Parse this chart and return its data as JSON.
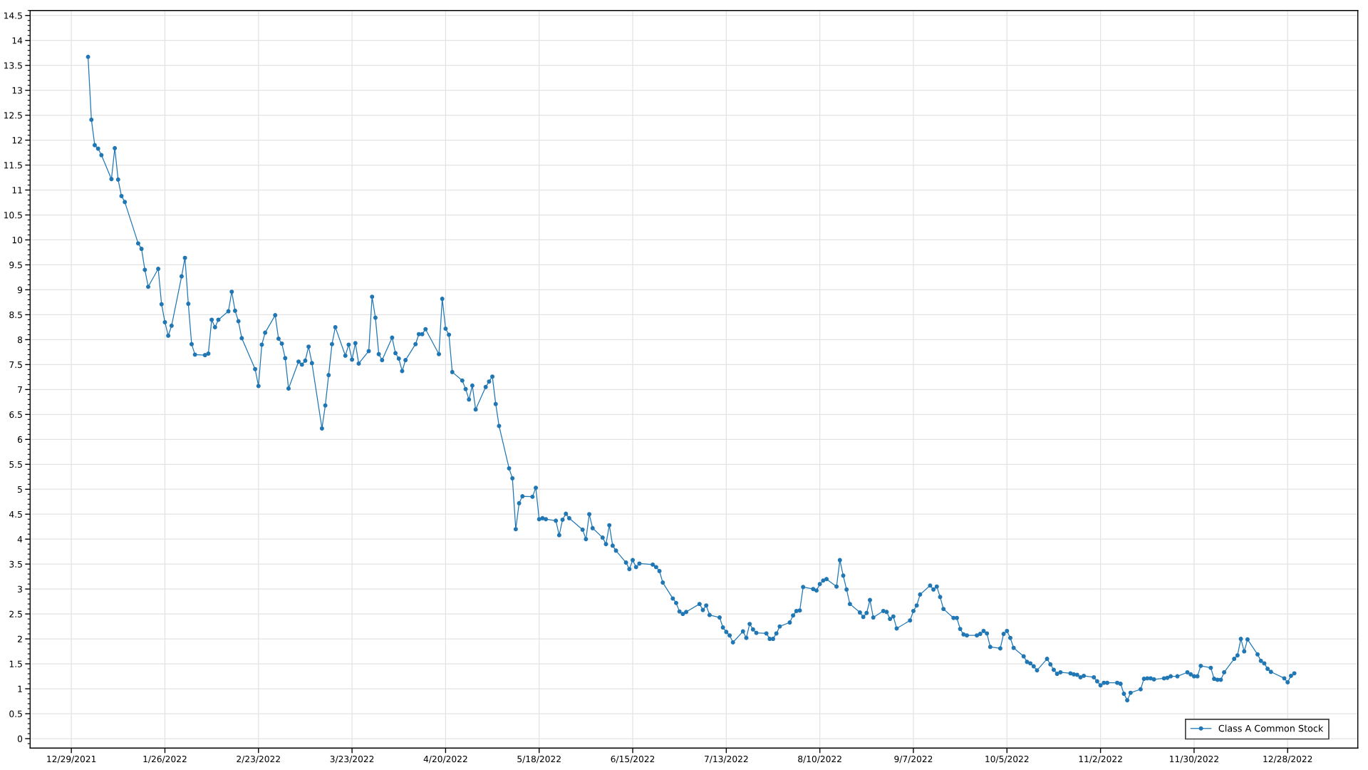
{
  "chart_data": {
    "type": "line",
    "xlim": [
      "2021-12-16T16:00",
      "2023-01-18"
    ],
    "xticks": [
      {
        "value": "2021-12-29",
        "label": "12/29/2021"
      },
      {
        "value": "2022-01-26",
        "label": "1/26/2022"
      },
      {
        "value": "2022-02-23",
        "label": "2/23/2022"
      },
      {
        "value": "2022-03-23",
        "label": "3/23/2022"
      },
      {
        "value": "2022-04-20",
        "label": "4/20/2022"
      },
      {
        "value": "2022-05-18",
        "label": "5/18/2022"
      },
      {
        "value": "2022-06-15",
        "label": "6/15/2022"
      },
      {
        "value": "2022-07-13",
        "label": "7/13/2022"
      },
      {
        "value": "2022-08-10",
        "label": "8/10/2022"
      },
      {
        "value": "2022-09-07",
        "label": "9/7/2022"
      },
      {
        "value": "2022-10-05",
        "label": "10/5/2022"
      },
      {
        "value": "2022-11-02",
        "label": "11/2/2022"
      },
      {
        "value": "2022-11-30",
        "label": "11/30/2022"
      },
      {
        "value": "2022-12-28",
        "label": "12/28/2022"
      }
    ],
    "ylim": [
      -0.19,
      14.6
    ],
    "yticks": [
      0,
      0.5,
      1,
      1.5,
      2,
      2.5,
      3,
      3.5,
      4,
      4.5,
      5,
      5.5,
      6,
      6.5,
      7,
      7.5,
      8,
      8.5,
      9,
      9.5,
      10,
      10.5,
      11,
      11.5,
      12,
      12.5,
      13,
      13.5,
      14,
      14.5
    ],
    "grid": true,
    "legend": "bottom right",
    "marker": "circle",
    "line_style": "solid",
    "series": [
      {
        "name": "Class A Common Stock",
        "color": "#2077b4",
        "x": [
          "2022-01-03",
          "2022-01-04",
          "2022-01-05",
          "2022-01-06",
          "2022-01-07",
          "2022-01-10",
          "2022-01-11",
          "2022-01-12",
          "2022-01-13",
          "2022-01-14",
          "2022-01-18",
          "2022-01-19",
          "2022-01-20",
          "2022-01-21",
          "2022-01-24",
          "2022-01-25",
          "2022-01-26",
          "2022-01-27",
          "2022-01-28",
          "2022-01-31",
          "2022-02-01",
          "2022-02-02",
          "2022-02-03",
          "2022-02-04",
          "2022-02-07",
          "2022-02-08",
          "2022-02-09",
          "2022-02-10",
          "2022-02-11",
          "2022-02-14",
          "2022-02-15",
          "2022-02-16",
          "2022-02-17",
          "2022-02-18",
          "2022-02-22",
          "2022-02-23",
          "2022-02-24",
          "2022-02-25",
          "2022-02-28",
          "2022-03-01",
          "2022-03-02",
          "2022-03-03",
          "2022-03-04",
          "2022-03-07",
          "2022-03-08",
          "2022-03-09",
          "2022-03-10",
          "2022-03-11",
          "2022-03-14",
          "2022-03-15",
          "2022-03-16",
          "2022-03-17",
          "2022-03-18",
          "2022-03-21",
          "2022-03-22",
          "2022-03-23",
          "2022-03-24",
          "2022-03-25",
          "2022-03-28",
          "2022-03-29",
          "2022-03-30",
          "2022-03-31",
          "2022-04-01",
          "2022-04-04",
          "2022-04-05",
          "2022-04-06",
          "2022-04-07",
          "2022-04-08",
          "2022-04-11",
          "2022-04-12",
          "2022-04-13",
          "2022-04-14",
          "2022-04-18",
          "2022-04-19",
          "2022-04-20",
          "2022-04-21",
          "2022-04-22",
          "2022-04-25",
          "2022-04-26",
          "2022-04-27",
          "2022-04-28",
          "2022-04-29",
          "2022-05-02",
          "2022-05-03",
          "2022-05-04",
          "2022-05-05",
          "2022-05-06",
          "2022-05-09",
          "2022-05-10",
          "2022-05-11",
          "2022-05-12",
          "2022-05-13",
          "2022-05-16",
          "2022-05-17",
          "2022-05-18",
          "2022-05-19",
          "2022-05-20",
          "2022-05-23",
          "2022-05-24",
          "2022-05-25",
          "2022-05-26",
          "2022-05-27",
          "2022-05-31",
          "2022-06-01",
          "2022-06-02",
          "2022-06-03",
          "2022-06-06",
          "2022-06-07",
          "2022-06-08",
          "2022-06-09",
          "2022-06-10",
          "2022-06-13",
          "2022-06-14",
          "2022-06-15",
          "2022-06-16",
          "2022-06-17",
          "2022-06-21",
          "2022-06-22",
          "2022-06-23",
          "2022-06-24",
          "2022-06-27",
          "2022-06-28",
          "2022-06-29",
          "2022-06-30",
          "2022-07-01",
          "2022-07-05",
          "2022-07-06",
          "2022-07-07",
          "2022-07-08",
          "2022-07-11",
          "2022-07-12",
          "2022-07-13",
          "2022-07-14",
          "2022-07-15",
          "2022-07-18",
          "2022-07-19",
          "2022-07-20",
          "2022-07-21",
          "2022-07-22",
          "2022-07-25",
          "2022-07-26",
          "2022-07-27",
          "2022-07-28",
          "2022-07-29",
          "2022-08-01",
          "2022-08-02",
          "2022-08-03",
          "2022-08-04",
          "2022-08-05",
          "2022-08-08",
          "2022-08-09",
          "2022-08-10",
          "2022-08-11",
          "2022-08-12",
          "2022-08-15",
          "2022-08-16",
          "2022-08-17",
          "2022-08-18",
          "2022-08-19",
          "2022-08-22",
          "2022-08-23",
          "2022-08-24",
          "2022-08-25",
          "2022-08-26",
          "2022-08-29",
          "2022-08-30",
          "2022-08-31",
          "2022-09-01",
          "2022-09-02",
          "2022-09-06",
          "2022-09-07",
          "2022-09-08",
          "2022-09-09",
          "2022-09-12",
          "2022-09-13",
          "2022-09-14",
          "2022-09-15",
          "2022-09-16",
          "2022-09-19",
          "2022-09-20",
          "2022-09-21",
          "2022-09-22",
          "2022-09-23",
          "2022-09-26",
          "2022-09-27",
          "2022-09-28",
          "2022-09-29",
          "2022-09-30",
          "2022-10-03",
          "2022-10-04",
          "2022-10-05",
          "2022-10-06",
          "2022-10-07",
          "2022-10-10",
          "2022-10-11",
          "2022-10-12",
          "2022-10-13",
          "2022-10-14",
          "2022-10-17",
          "2022-10-18",
          "2022-10-19",
          "2022-10-20",
          "2022-10-21",
          "2022-10-24",
          "2022-10-25",
          "2022-10-26",
          "2022-10-27",
          "2022-10-28",
          "2022-10-31",
          "2022-11-01",
          "2022-11-02",
          "2022-11-03",
          "2022-11-04",
          "2022-11-07",
          "2022-11-08",
          "2022-11-09",
          "2022-11-10",
          "2022-11-11",
          "2022-11-14",
          "2022-11-15",
          "2022-11-16",
          "2022-11-17",
          "2022-11-18",
          "2022-11-21",
          "2022-11-22",
          "2022-11-23",
          "2022-11-25",
          "2022-11-28",
          "2022-11-29",
          "2022-11-30",
          "2022-12-01",
          "2022-12-02",
          "2022-12-05",
          "2022-12-06",
          "2022-12-07",
          "2022-12-08",
          "2022-12-09",
          "2022-12-12",
          "2022-12-13",
          "2022-12-14",
          "2022-12-15",
          "2022-12-16",
          "2022-12-19",
          "2022-12-20",
          "2022-12-21",
          "2022-12-22",
          "2022-12-23",
          "2022-12-27",
          "2022-12-28",
          "2022-12-29",
          "2022-12-30"
        ],
        "values": [
          13.67,
          12.41,
          11.9,
          11.83,
          11.7,
          11.22,
          11.84,
          11.21,
          10.88,
          10.76,
          9.93,
          9.82,
          9.4,
          9.06,
          9.42,
          8.71,
          8.35,
          8.08,
          8.28,
          9.27,
          9.64,
          8.72,
          7.91,
          7.7,
          7.69,
          7.72,
          8.4,
          8.25,
          8.4,
          8.57,
          8.96,
          8.58,
          8.37,
          8.03,
          7.41,
          7.07,
          7.9,
          8.14,
          8.49,
          8.02,
          7.92,
          7.63,
          7.02,
          7.56,
          7.5,
          7.58,
          7.86,
          7.53,
          6.22,
          6.68,
          7.29,
          7.91,
          8.25,
          7.68,
          7.9,
          7.6,
          7.93,
          7.52,
          7.77,
          8.86,
          8.44,
          7.71,
          7.59,
          8.04,
          7.73,
          7.62,
          7.37,
          7.59,
          7.91,
          8.11,
          8.11,
          8.21,
          7.71,
          8.82,
          8.22,
          8.1,
          7.35,
          7.18,
          7.01,
          6.8,
          7.08,
          6.6,
          7.05,
          7.16,
          7.26,
          6.71,
          6.27,
          5.42,
          5.22,
          4.2,
          4.72,
          4.86,
          4.85,
          5.03,
          4.4,
          4.42,
          4.4,
          4.37,
          4.08,
          4.39,
          4.51,
          4.42,
          4.19,
          4.0,
          4.5,
          4.22,
          4.03,
          3.9,
          4.28,
          3.87,
          3.77,
          3.53,
          3.4,
          3.58,
          3.44,
          3.51,
          3.49,
          3.44,
          3.36,
          3.13,
          2.81,
          2.72,
          2.55,
          2.5,
          2.54,
          2.7,
          2.58,
          2.67,
          2.48,
          2.43,
          2.23,
          2.14,
          2.07,
          1.93,
          2.15,
          2.02,
          2.3,
          2.19,
          2.12,
          2.11,
          2.0,
          2.0,
          2.11,
          2.25,
          2.33,
          2.47,
          2.56,
          2.57,
          3.04,
          3.0,
          2.97,
          3.1,
          3.17,
          3.2,
          3.05,
          3.58,
          3.27,
          2.99,
          2.7,
          2.53,
          2.44,
          2.52,
          2.78,
          2.43,
          2.56,
          2.54,
          2.4,
          2.45,
          2.21,
          2.37,
          2.56,
          2.67,
          2.89,
          3.07,
          2.99,
          3.05,
          2.84,
          2.6,
          2.42,
          2.42,
          2.2,
          2.09,
          2.07,
          2.07,
          2.1,
          2.16,
          2.11,
          1.84,
          1.81,
          2.1,
          2.16,
          2.02,
          1.82,
          1.65,
          1.54,
          1.51,
          1.45,
          1.37,
          1.6,
          1.49,
          1.38,
          1.3,
          1.33,
          1.31,
          1.29,
          1.28,
          1.23,
          1.26,
          1.23,
          1.15,
          1.07,
          1.12,
          1.12,
          1.12,
          1.1,
          0.9,
          0.77,
          0.92,
          0.99,
          1.2,
          1.21,
          1.21,
          1.19,
          1.21,
          1.22,
          1.25,
          1.25,
          1.33,
          1.29,
          1.25,
          1.25,
          1.46,
          1.42,
          1.2,
          1.18,
          1.18,
          1.33,
          1.6,
          1.67,
          2.0,
          1.75,
          1.99,
          1.69,
          1.56,
          1.51,
          1.4,
          1.34,
          1.21,
          1.13,
          1.26,
          1.31
        ]
      }
    ]
  }
}
